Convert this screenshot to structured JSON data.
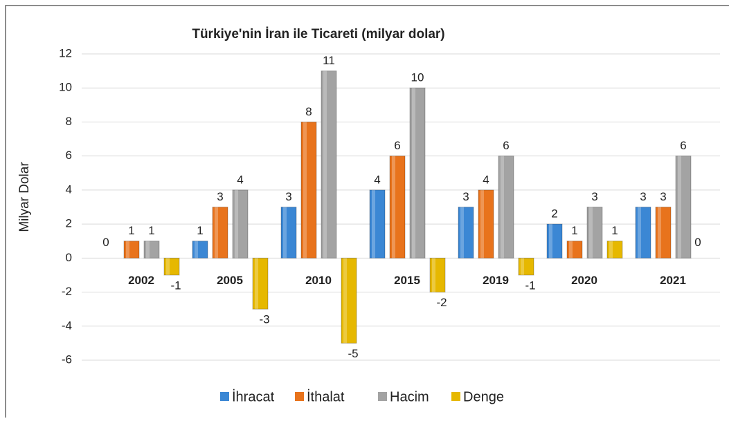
{
  "chart_data": {
    "type": "bar",
    "title": "Türkiye'nin İran ile Ticareti (milyar dolar)",
    "y_label": "Milyar Dolar",
    "categories": [
      "2002",
      "2005",
      "2010",
      "2015",
      "2019",
      "2020",
      "2021"
    ],
    "series": [
      {
        "name": "İhracat",
        "color": "#3b87d4",
        "values": [
          0,
          1,
          3,
          4,
          3,
          2,
          3
        ]
      },
      {
        "name": "İthalat",
        "color": "#e8731c",
        "values": [
          1,
          3,
          8,
          6,
          4,
          1,
          3
        ]
      },
      {
        "name": "Hacim",
        "color": "#a3a3a3",
        "values": [
          1,
          4,
          11,
          10,
          6,
          3,
          6
        ]
      },
      {
        "name": "Denge",
        "color": "#e6b800",
        "values": [
          -1,
          -3,
          -5,
          -2,
          -1,
          1,
          0
        ]
      }
    ],
    "ylim": [
      -6,
      12
    ],
    "yticks": [
      -6,
      -4,
      -2,
      0,
      2,
      4,
      6,
      8,
      10,
      12
    ],
    "grid": true,
    "legend": "bottom"
  }
}
